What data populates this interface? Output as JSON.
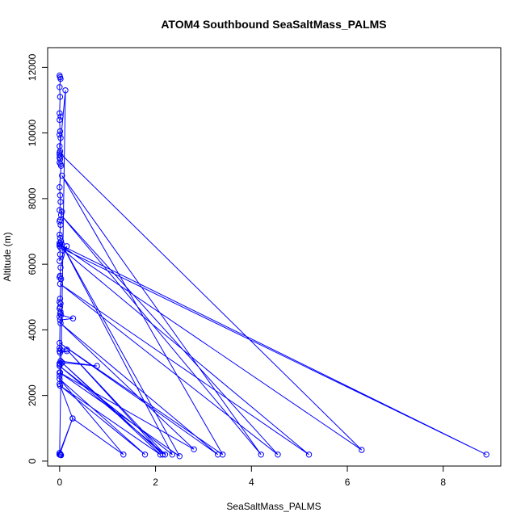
{
  "chart_data": {
    "type": "line",
    "title": "ATOM4 Southbound SeaSaltMass_PALMS",
    "xlabel": "SeaSaltMass_PALMS",
    "ylabel": "Altitude (m)",
    "xlim": [
      -0.25,
      9.2
    ],
    "ylim": [
      -150,
      12600
    ],
    "xticks": [
      0,
      2,
      4,
      6,
      8
    ],
    "yticks": [
      0,
      2000,
      4000,
      6000,
      8000,
      10000,
      12000
    ],
    "series": [
      {
        "color": "#0000ff",
        "x": [
          0.0,
          0.01,
          0.02,
          0.0,
          0.01,
          0.0,
          0.02,
          0.0,
          0.01,
          0.0,
          0.02,
          0.0,
          0.01,
          0.0,
          0.02,
          0.0,
          0.01,
          0.0,
          0.02,
          0.03,
          0.0,
          0.01,
          0.02,
          0.0,
          0.05,
          0.01,
          0.0,
          0.02,
          0.0,
          0.01,
          0.03,
          0.0,
          0.02,
          0.0,
          0.01,
          0.0,
          0.15,
          0.02,
          0.01,
          0.0,
          0.03,
          0.01,
          0.0,
          0.02,
          0.01,
          0.0,
          0.02,
          0.01,
          0.0,
          0.03,
          0.28,
          0.01,
          0.0,
          0.02,
          0.0,
          0.15,
          0.01,
          0.0,
          0.02,
          0.78,
          0.05,
          0.0,
          0.01,
          0.0,
          0.0,
          0.27,
          0.0,
          0.01,
          0.02,
          0.0,
          0.02,
          0.03,
          0.02,
          0.0,
          0.12,
          0.0,
          6.3,
          0.0,
          8.9,
          0.02,
          5.2,
          0.01,
          4.55,
          0.03,
          4.2,
          0.05,
          3.4,
          0.0,
          3.3,
          0.02,
          2.8,
          0.0,
          2.5,
          0.05,
          2.35,
          0.0,
          2.2,
          0.15,
          2.15,
          0.05,
          2.1,
          0.01,
          1.78,
          0.0,
          1.33,
          0.27,
          0.0
        ],
        "y": [
          11750,
          11700,
          11650,
          11400,
          11100,
          10600,
          10500,
          10400,
          10050,
          9950,
          9850,
          9600,
          9450,
          9350,
          9300,
          9250,
          9200,
          9100,
          9050,
          9000,
          8350,
          8100,
          7900,
          7650,
          7600,
          7350,
          7300,
          7200,
          6900,
          6800,
          6700,
          6650,
          6600,
          6550,
          6300,
          6100,
          6550,
          5900,
          5650,
          5600,
          5550,
          4950,
          4850,
          4800,
          4700,
          4650,
          4550,
          4500,
          4400,
          4450,
          4350,
          4300,
          3450,
          3400,
          3350,
          3350,
          3300,
          2980,
          3050,
          2900,
          3000,
          2950,
          2700,
          2600,
          2350,
          1300,
          250,
          200,
          200,
          200,
          200,
          180,
          200,
          200,
          11300,
          9400,
          340,
          6600,
          200,
          6500,
          200,
          5400,
          200,
          7500,
          200,
          8700,
          200,
          3600,
          200,
          4200,
          360,
          2700,
          150,
          6600,
          200,
          2900,
          200,
          3400,
          200,
          3000,
          200,
          2300,
          200,
          2500,
          200,
          1300,
          200
        ]
      }
    ]
  }
}
